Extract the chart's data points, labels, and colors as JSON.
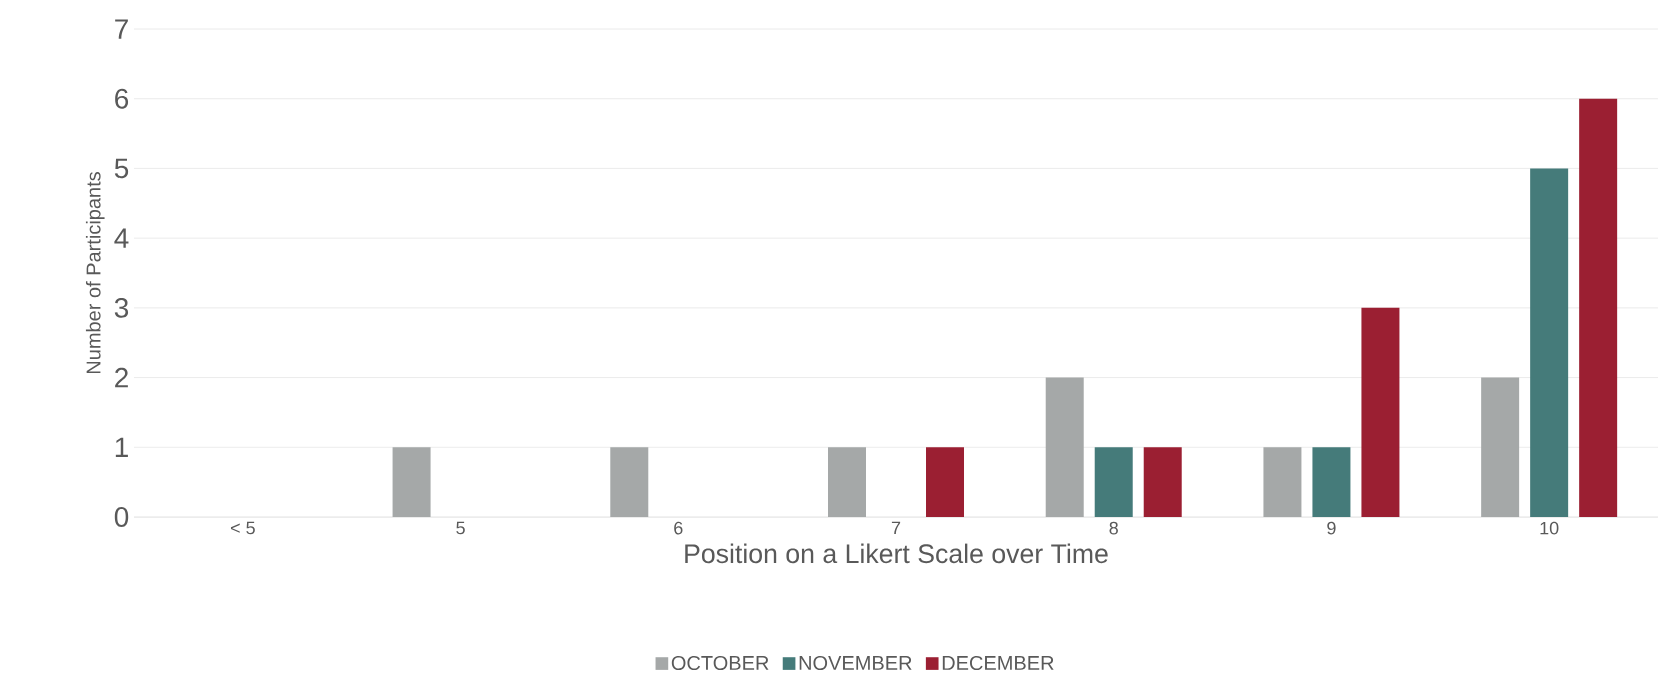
{
  "chart_data": {
    "type": "bar",
    "xlabel": "Position on a Likert Scale over Time",
    "ylabel": "Number of Participants",
    "categories": [
      "< 5",
      "5",
      "6",
      "7",
      "8",
      "9",
      "10"
    ],
    "series": [
      {
        "name": "OCTOBER",
        "color": "#a5a8a8",
        "values": [
          0,
          1,
          1,
          1,
          2,
          1,
          2
        ]
      },
      {
        "name": "NOVEMBER",
        "color": "#457b7a",
        "values": [
          0,
          0,
          0,
          0,
          1,
          1,
          5
        ]
      },
      {
        "name": "DECEMBER",
        "color": "#9b1f32",
        "values": [
          0,
          0,
          0,
          1,
          1,
          3,
          6
        ]
      }
    ],
    "ylim": [
      0,
      7
    ],
    "yticks": [
      0,
      1,
      2,
      3,
      4,
      5,
      6,
      7
    ],
    "grid": "y",
    "legend": "bottom"
  }
}
